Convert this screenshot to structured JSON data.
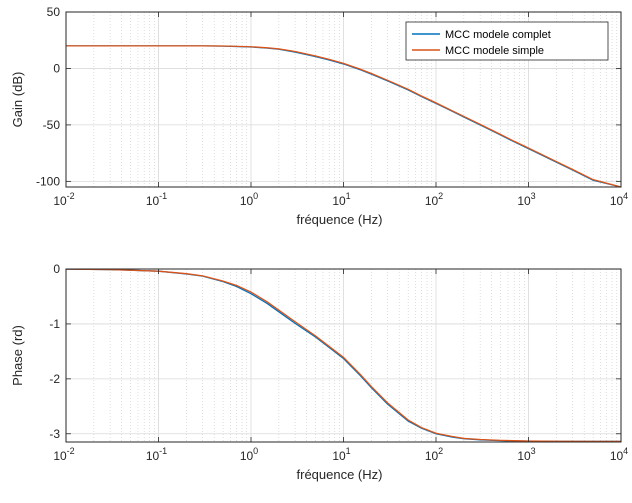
{
  "chart_data": [
    {
      "type": "line",
      "title": "",
      "xscale": "log",
      "xlim": [
        0.01,
        10000
      ],
      "ylim": [
        -105,
        50
      ],
      "xlabel": "fréquence (Hz)",
      "ylabel": "Gain (dB)",
      "xticks": [
        0.01,
        0.1,
        1,
        10,
        100,
        1000,
        10000
      ],
      "yticks": [
        -100,
        -50,
        0,
        50
      ],
      "ytick_labels": [
        "-100",
        "-50",
        "0",
        "50"
      ],
      "grid": true,
      "legend": "top-right",
      "series": [
        {
          "name": "MCC modele complet",
          "color": "#0072BD",
          "x": [
            0.01,
            0.03,
            0.1,
            0.3,
            0.5,
            1,
            1.5,
            2,
            3,
            5,
            7,
            10,
            15,
            20,
            30,
            50,
            70,
            100,
            150,
            200,
            300,
            500,
            700,
            1000,
            2000,
            3000,
            5000,
            10000
          ],
          "y": [
            20,
            20,
            20,
            20,
            19.8,
            19,
            18,
            17,
            14.5,
            10.5,
            7.5,
            4,
            -1,
            -5,
            -11,
            -19,
            -25,
            -31,
            -38,
            -43,
            -50,
            -59,
            -65,
            -71,
            -83,
            -90,
            -99,
            -105
          ]
        },
        {
          "name": "MCC modele simple",
          "color": "#D95319",
          "x": [
            0.01,
            0.03,
            0.1,
            0.3,
            0.5,
            1,
            1.5,
            2,
            3,
            5,
            7,
            10,
            15,
            20,
            30,
            50,
            70,
            100,
            150,
            200,
            300,
            500,
            700,
            1000,
            2000,
            3000,
            5000,
            10000
          ],
          "y": [
            20,
            20,
            20,
            20,
            19.9,
            19.2,
            18.3,
            17.3,
            15,
            11,
            8,
            4.5,
            -0.5,
            -4.5,
            -10.5,
            -18.5,
            -24.5,
            -30.5,
            -37.5,
            -42.5,
            -49.5,
            -58.5,
            -64.5,
            -70.5,
            -82.5,
            -89.5,
            -98.5,
            -105
          ]
        }
      ]
    },
    {
      "type": "line",
      "title": "",
      "xscale": "log",
      "xlim": [
        0.01,
        10000
      ],
      "ylim": [
        -3.15,
        0
      ],
      "xlabel": "fréquence (Hz)",
      "ylabel": "Phase (rd)",
      "xticks": [
        0.01,
        0.1,
        1,
        10,
        100,
        1000,
        10000
      ],
      "yticks": [
        -3,
        -2,
        -1,
        0
      ],
      "ytick_labels": [
        "-3",
        "-2",
        "-1",
        "0"
      ],
      "grid": true,
      "legend": "none",
      "series": [
        {
          "name": "MCC modele complet",
          "color": "#0072BD",
          "x": [
            0.01,
            0.03,
            0.1,
            0.2,
            0.3,
            0.5,
            0.7,
            1,
            1.5,
            2,
            3,
            5,
            7,
            10,
            15,
            20,
            30,
            50,
            70,
            100,
            150,
            200,
            300,
            500,
            1000,
            2000,
            5000,
            10000
          ],
          "y": [
            -0.002,
            -0.01,
            -0.04,
            -0.09,
            -0.13,
            -0.23,
            -0.32,
            -0.45,
            -0.63,
            -0.78,
            -0.99,
            -1.24,
            -1.43,
            -1.63,
            -1.93,
            -2.16,
            -2.46,
            -2.77,
            -2.9,
            -3.0,
            -3.06,
            -3.09,
            -3.11,
            -3.125,
            -3.135,
            -3.138,
            -3.14,
            -3.14
          ]
        },
        {
          "name": "MCC modele simple",
          "color": "#D95319",
          "x": [
            0.01,
            0.03,
            0.1,
            0.2,
            0.3,
            0.5,
            0.7,
            1,
            1.5,
            2,
            3,
            5,
            7,
            10,
            15,
            20,
            30,
            50,
            70,
            100,
            150,
            200,
            300,
            500,
            1000,
            2000,
            5000,
            10000
          ],
          "y": [
            -0.002,
            -0.01,
            -0.04,
            -0.085,
            -0.125,
            -0.22,
            -0.3,
            -0.42,
            -0.6,
            -0.75,
            -0.96,
            -1.22,
            -1.41,
            -1.61,
            -1.91,
            -2.14,
            -2.44,
            -2.75,
            -2.89,
            -2.99,
            -3.05,
            -3.085,
            -3.105,
            -3.12,
            -3.133,
            -3.137,
            -3.14,
            -3.14
          ]
        }
      ]
    }
  ]
}
